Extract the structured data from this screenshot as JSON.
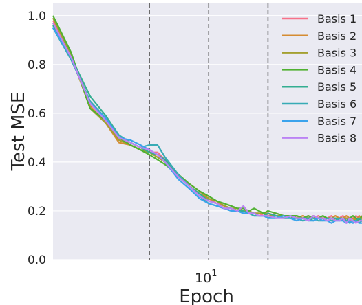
{
  "chart_data": {
    "type": "line",
    "title": "",
    "xlabel": "Epoch",
    "ylabel": "Test MSE",
    "xscale": "log",
    "xlim": [
      1.62,
      60.0
    ],
    "ylim": [
      0.0,
      1.05
    ],
    "xticks": [
      {
        "value": 10,
        "base": "10",
        "exponent": "1"
      }
    ],
    "yticks": [
      {
        "value": 0.0,
        "label": "0.0"
      },
      {
        "value": 0.2,
        "label": "0.2"
      },
      {
        "value": 0.4,
        "label": "0.4"
      },
      {
        "value": 0.6,
        "label": "0.6"
      },
      {
        "value": 0.8,
        "label": "0.8"
      },
      {
        "value": 1.0,
        "label": "1.0"
      }
    ],
    "vlines": [
      5,
      10,
      20
    ],
    "grid": true,
    "background": "#eaeaf2",
    "legend_position": "top-right",
    "x": [
      1.62,
      2,
      2.5,
      3,
      3.5,
      4,
      4.5,
      5,
      5.5,
      6,
      7,
      8,
      9,
      10,
      11,
      12,
      13,
      14,
      15,
      16,
      17,
      18,
      19,
      20,
      22,
      24,
      26,
      28,
      30,
      32,
      34,
      36,
      38,
      40,
      42,
      44,
      46,
      48,
      50,
      52,
      54,
      56,
      58,
      60
    ],
    "series": [
      {
        "name": "Basis 1",
        "color": "#f77189",
        "values": [
          0.98,
          0.84,
          0.64,
          0.57,
          0.49,
          0.48,
          0.46,
          0.44,
          0.44,
          0.41,
          0.35,
          0.3,
          0.27,
          0.25,
          0.23,
          0.22,
          0.21,
          0.2,
          0.2,
          0.19,
          0.19,
          0.19,
          0.18,
          0.18,
          0.19,
          0.18,
          0.18,
          0.18,
          0.17,
          0.18,
          0.17,
          0.18,
          0.17,
          0.17,
          0.18,
          0.16,
          0.17,
          0.18,
          0.17,
          0.16,
          0.17,
          0.18,
          0.17,
          0.18
        ]
      },
      {
        "name": "Basis 2",
        "color": "#d58c32",
        "values": [
          0.97,
          0.83,
          0.63,
          0.56,
          0.48,
          0.47,
          0.45,
          0.44,
          0.43,
          0.41,
          0.35,
          0.31,
          0.28,
          0.25,
          0.24,
          0.22,
          0.21,
          0.2,
          0.2,
          0.2,
          0.19,
          0.19,
          0.19,
          0.19,
          0.18,
          0.18,
          0.18,
          0.17,
          0.18,
          0.17,
          0.18,
          0.17,
          0.17,
          0.16,
          0.17,
          0.18,
          0.17,
          0.17,
          0.18,
          0.17,
          0.17,
          0.16,
          0.18,
          0.17
        ]
      },
      {
        "name": "Basis 3",
        "color": "#a4a031",
        "values": [
          0.99,
          0.84,
          0.62,
          0.56,
          0.49,
          0.47,
          0.45,
          0.44,
          0.42,
          0.4,
          0.34,
          0.3,
          0.27,
          0.25,
          0.24,
          0.22,
          0.21,
          0.21,
          0.2,
          0.2,
          0.19,
          0.19,
          0.19,
          0.18,
          0.18,
          0.18,
          0.17,
          0.18,
          0.17,
          0.17,
          0.18,
          0.17,
          0.17,
          0.17,
          0.16,
          0.17,
          0.17,
          0.16,
          0.17,
          0.17,
          0.16,
          0.17,
          0.16,
          0.17
        ]
      },
      {
        "name": "Basis 4",
        "color": "#50b131",
        "values": [
          1.0,
          0.85,
          0.62,
          0.57,
          0.5,
          0.47,
          0.45,
          0.43,
          0.41,
          0.39,
          0.35,
          0.31,
          0.28,
          0.26,
          0.24,
          0.23,
          0.22,
          0.21,
          0.21,
          0.2,
          0.21,
          0.2,
          0.19,
          0.2,
          0.19,
          0.18,
          0.18,
          0.18,
          0.17,
          0.18,
          0.17,
          0.17,
          0.18,
          0.17,
          0.17,
          0.16,
          0.17,
          0.17,
          0.16,
          0.17,
          0.18,
          0.17,
          0.16,
          0.18
        ]
      },
      {
        "name": "Basis 5",
        "color": "#34ae91",
        "values": [
          0.96,
          0.83,
          0.67,
          0.59,
          0.51,
          0.48,
          0.46,
          0.44,
          0.43,
          0.41,
          0.34,
          0.3,
          0.27,
          0.24,
          0.23,
          0.21,
          0.21,
          0.2,
          0.2,
          0.19,
          0.19,
          0.18,
          0.18,
          0.19,
          0.18,
          0.17,
          0.18,
          0.17,
          0.17,
          0.17,
          0.16,
          0.17,
          0.17,
          0.16,
          0.17,
          0.17,
          0.16,
          0.17,
          0.16,
          0.17,
          0.16,
          0.16,
          0.17,
          0.16
        ]
      },
      {
        "name": "Basis 6",
        "color": "#37abb5",
        "values": [
          0.95,
          0.82,
          0.65,
          0.58,
          0.51,
          0.48,
          0.46,
          0.47,
          0.47,
          0.42,
          0.35,
          0.3,
          0.26,
          0.23,
          0.22,
          0.21,
          0.2,
          0.2,
          0.19,
          0.19,
          0.18,
          0.18,
          0.18,
          0.17,
          0.18,
          0.17,
          0.17,
          0.17,
          0.16,
          0.17,
          0.17,
          0.16,
          0.16,
          0.17,
          0.16,
          0.16,
          0.17,
          0.16,
          0.16,
          0.15,
          0.16,
          0.16,
          0.15,
          0.16
        ]
      },
      {
        "name": "Basis 7",
        "color": "#3ba3ec",
        "values": [
          0.95,
          0.83,
          0.64,
          0.58,
          0.5,
          0.49,
          0.47,
          0.45,
          0.43,
          0.4,
          0.33,
          0.29,
          0.25,
          0.23,
          0.22,
          0.21,
          0.2,
          0.2,
          0.19,
          0.19,
          0.19,
          0.18,
          0.18,
          0.17,
          0.17,
          0.18,
          0.17,
          0.16,
          0.17,
          0.16,
          0.16,
          0.17,
          0.16,
          0.16,
          0.15,
          0.16,
          0.16,
          0.16,
          0.15,
          0.16,
          0.15,
          0.16,
          0.15,
          0.15
        ]
      },
      {
        "name": "Basis 8",
        "color": "#bb83f4",
        "values": [
          0.97,
          0.83,
          0.64,
          0.57,
          0.5,
          0.48,
          0.46,
          0.45,
          0.43,
          0.4,
          0.34,
          0.3,
          0.26,
          0.24,
          0.23,
          0.21,
          0.21,
          0.2,
          0.22,
          0.19,
          0.19,
          0.18,
          0.18,
          0.18,
          0.17,
          0.17,
          0.18,
          0.17,
          0.17,
          0.16,
          0.18,
          0.17,
          0.17,
          0.16,
          0.17,
          0.16,
          0.16,
          0.17,
          0.15,
          0.17,
          0.16,
          0.15,
          0.16,
          0.16
        ]
      }
    ]
  }
}
